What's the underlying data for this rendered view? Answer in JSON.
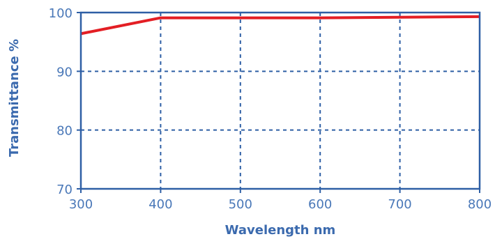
{
  "chart_data": {
    "type": "line",
    "title": "",
    "xlabel": "Wavelength nm",
    "ylabel": "Transmittance %",
    "xlim": [
      300,
      800
    ],
    "ylim": [
      70,
      100
    ],
    "x_ticks": [
      "300",
      "400",
      "500",
      "600",
      "700",
      "800"
    ],
    "y_ticks": [
      "70",
      "80",
      "90",
      "100"
    ],
    "grid": true,
    "grid_style": "dashed",
    "series": [
      {
        "color": "#e31e24",
        "x": [
          300,
          400,
          500,
          600,
          700,
          800
        ],
        "y": [
          96.4,
          99.1,
          99.1,
          99.1,
          99.2,
          99.3
        ]
      }
    ],
    "colors": {
      "axis": "#2e5fa5",
      "text": "#4a78b8",
      "title": "#3b6aae",
      "grid": "#2e5fa5"
    }
  }
}
